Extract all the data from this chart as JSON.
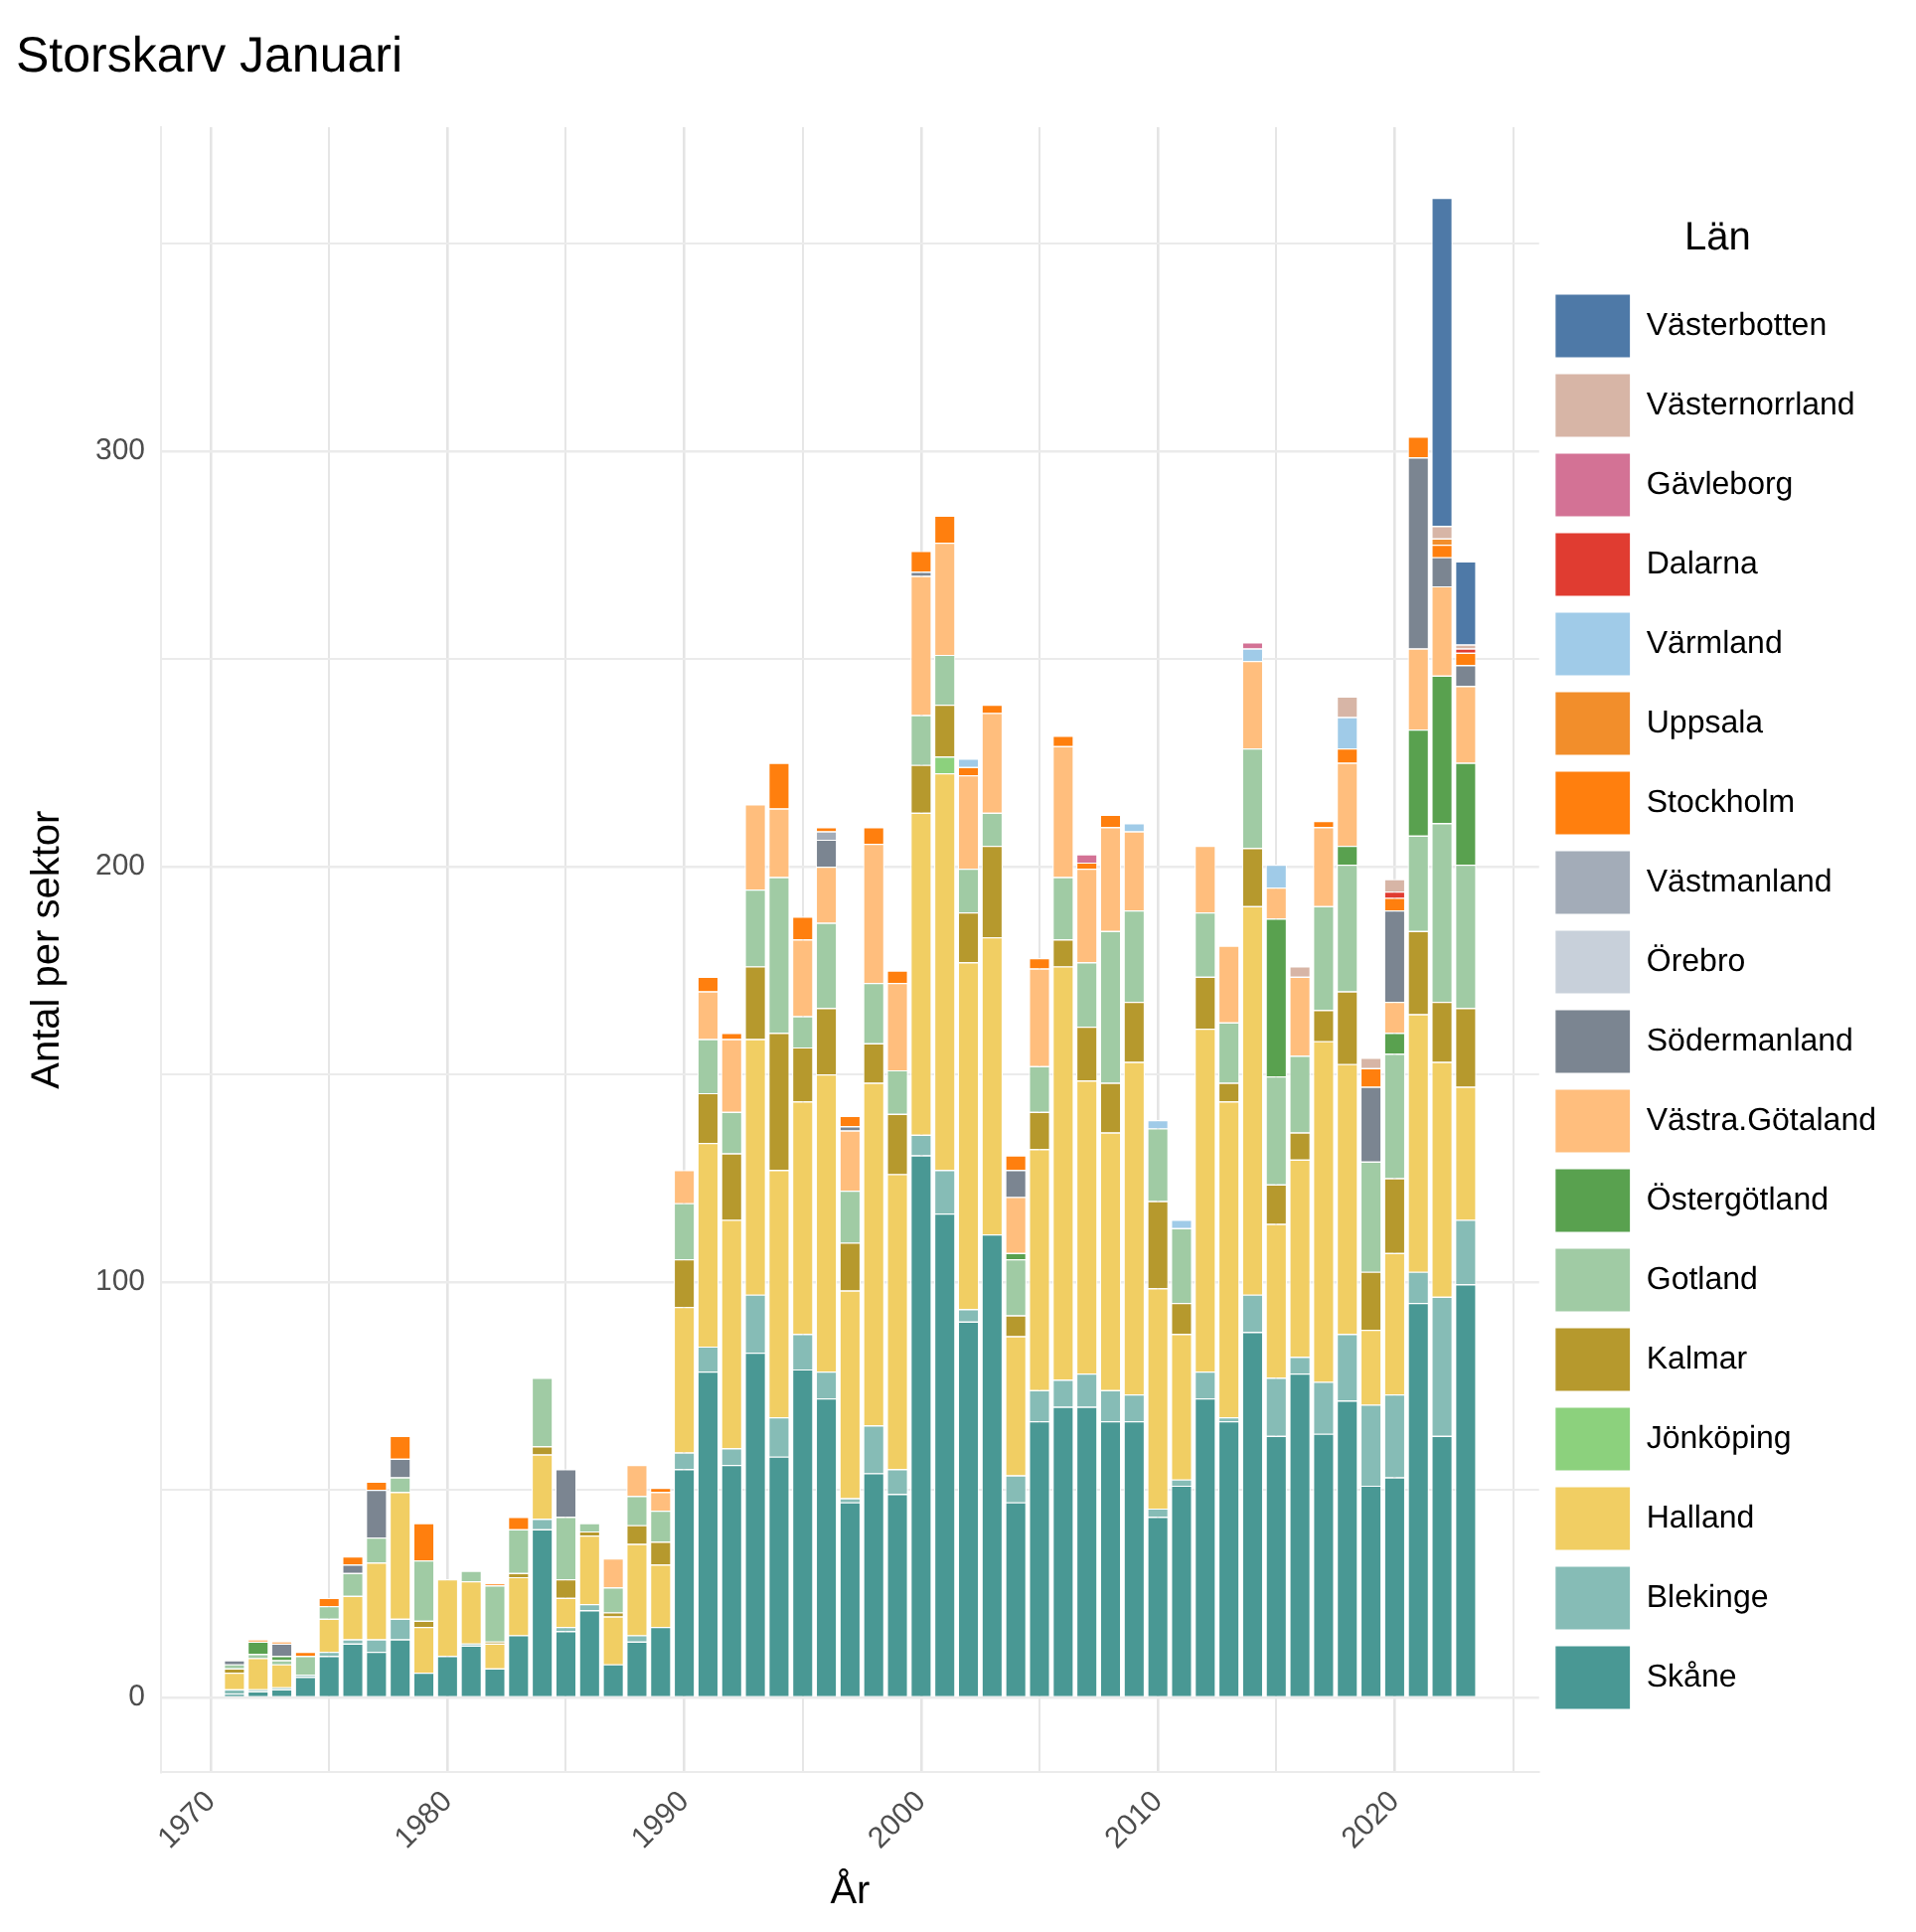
{
  "chart_data": {
    "type": "bar",
    "title": "Storskarv Januari",
    "xlabel": "År",
    "ylabel": "Antal per sektor",
    "legend_title": "Län",
    "stacked": true,
    "grid": true,
    "legend": "right",
    "xlim": [
      1967.9,
      2026.1
    ],
    "xticks": [
      1970,
      {
        "value": 1975,
        "label": null
      },
      1980,
      {
        "value": 1985,
        "label": null
      },
      1990,
      {
        "value": 1995,
        "label": null
      },
      2000,
      {
        "value": 2005,
        "label": null
      },
      2010,
      {
        "value": 2015,
        "label": null
      },
      2020,
      {
        "value": 2025,
        "label": null
      }
    ],
    "ylim": [
      -18,
      378
    ],
    "yticks": [
      0,
      {
        "value": 50,
        "label": null
      },
      100,
      {
        "value": 150,
        "label": null
      },
      200,
      {
        "value": 250,
        "label": null
      },
      300,
      {
        "value": 350,
        "label": null
      }
    ],
    "x": [
      1971,
      1972,
      1973,
      1974,
      1975,
      1976,
      1977,
      1978,
      1979,
      1980,
      1981,
      1982,
      1983,
      1984,
      1985,
      1986,
      1987,
      1988,
      1989,
      1990,
      1991,
      1992,
      1993,
      1994,
      1995,
      1996,
      1997,
      1998,
      1999,
      2000,
      2001,
      2002,
      2003,
      2004,
      2005,
      2006,
      2007,
      2008,
      2009,
      2010,
      2011,
      2012,
      2013,
      2014,
      2015,
      2016,
      2017,
      2018,
      2019,
      2020,
      2021,
      2022,
      2023
    ],
    "series": [
      {
        "name": "Skåne",
        "color": "#499894",
        "values": [
          1,
          1.5,
          2,
          5,
          10,
          13,
          11,
          14,
          6,
          10,
          12.5,
          7,
          15,
          40.5,
          16,
          21,
          8,
          13.5,
          17,
          55,
          78.5,
          56,
          83,
          58,
          79,
          72,
          47,
          54,
          49,
          130.5,
          116.5,
          90.5,
          111.5,
          47,
          66.5,
          70,
          70,
          66.5,
          66.5,
          43.5,
          51,
          72,
          66.5,
          88,
          63,
          78,
          63.5,
          71.5,
          51,
          53,
          95,
          63,
          99.5
        ]
      },
      {
        "name": "Blekinge",
        "color": "#86bcb6",
        "values": [
          1,
          0.5,
          0.5,
          0.5,
          1,
          1,
          3,
          5,
          null,
          null,
          0.5,
          null,
          null,
          2.5,
          1,
          1.5,
          null,
          1.5,
          null,
          4,
          6,
          4,
          14,
          9.5,
          8.5,
          6.5,
          1,
          11.5,
          6,
          5,
          10.5,
          3,
          null,
          6.5,
          7.5,
          6.5,
          8,
          7.5,
          6.5,
          2,
          1.5,
          6.5,
          1,
          9,
          14,
          4,
          12.5,
          16,
          19.5,
          20,
          7.5,
          33.5,
          15.5
        ]
      },
      {
        "name": "Halland",
        "color": "#f1ce63",
        "values": [
          4,
          7.5,
          5.5,
          null,
          8,
          10.5,
          18.5,
          30.5,
          11,
          18.5,
          15,
          6,
          14,
          15.5,
          7,
          16.5,
          11.5,
          22,
          15,
          35,
          49,
          55,
          61.5,
          59.5,
          56,
          71.5,
          50,
          82.5,
          71,
          77.5,
          95.5,
          83.5,
          71.5,
          33.5,
          58,
          99.5,
          70.5,
          62,
          80,
          53,
          35,
          82.5,
          76,
          93.5,
          37,
          47.5,
          82,
          65,
          18,
          34,
          62,
          56.5,
          32
        ]
      },
      {
        "name": "Jönköping",
        "color": "#8cd17d",
        "values": [
          null,
          null,
          null,
          null,
          null,
          null,
          null,
          null,
          null,
          null,
          null,
          null,
          null,
          null,
          null,
          null,
          null,
          null,
          null,
          null,
          null,
          null,
          null,
          null,
          null,
          null,
          null,
          null,
          null,
          null,
          4,
          null,
          null,
          null,
          null,
          null,
          null,
          null,
          null,
          null,
          null,
          null,
          null,
          null,
          null,
          null,
          null,
          null,
          null,
          null,
          null,
          null,
          null
        ]
      },
      {
        "name": "Kalmar",
        "color": "#b6992d",
        "values": [
          1,
          null,
          null,
          null,
          null,
          null,
          null,
          null,
          1.5,
          null,
          null,
          0.5,
          1,
          2,
          4.5,
          1,
          1,
          4.5,
          5.5,
          11.5,
          12,
          16,
          17.5,
          33,
          13,
          16,
          11.5,
          9.5,
          14.5,
          11.5,
          12.5,
          12,
          22,
          5,
          9,
          6.5,
          13,
          12,
          14.5,
          21,
          7.5,
          12.5,
          4.5,
          14,
          9.5,
          6.5,
          7.5,
          17.5,
          14,
          18,
          20,
          14.5,
          19
        ]
      },
      {
        "name": "Gotland",
        "color": "#a0cba4",
        "values": [
          1,
          1,
          1,
          4.5,
          3,
          5.5,
          6,
          3.5,
          14.5,
          null,
          2.5,
          13.5,
          10.5,
          16.5,
          15,
          2,
          6,
          7,
          7.5,
          13.5,
          13,
          10,
          18.5,
          37.5,
          7.5,
          20.5,
          12.5,
          14.5,
          10.5,
          12,
          12,
          10.5,
          8,
          13.5,
          11,
          15,
          15.5,
          36.5,
          22,
          17.5,
          18,
          15.5,
          14.5,
          24,
          26,
          18.5,
          25,
          30.5,
          26.5,
          30,
          23,
          43,
          34.5
        ]
      },
      {
        "name": "Östergötland",
        "color": "#59a14f",
        "values": [
          null,
          3,
          1,
          null,
          null,
          null,
          null,
          null,
          null,
          null,
          null,
          null,
          null,
          null,
          null,
          null,
          null,
          null,
          null,
          null,
          null,
          null,
          null,
          null,
          null,
          null,
          null,
          null,
          null,
          null,
          null,
          null,
          null,
          1.5,
          null,
          null,
          null,
          null,
          null,
          null,
          null,
          null,
          null,
          null,
          38,
          null,
          null,
          4.5,
          null,
          5,
          25.5,
          35.5,
          24.5
        ]
      },
      {
        "name": "Västra.Götaland",
        "color": "#ffbe7d",
        "values": [
          null,
          null,
          null,
          null,
          null,
          null,
          null,
          null,
          null,
          null,
          null,
          null,
          null,
          null,
          null,
          null,
          7,
          7.5,
          4.5,
          8,
          11.5,
          17.5,
          20.5,
          16.5,
          18.5,
          13.5,
          14.5,
          33.5,
          21,
          33.5,
          27,
          22.5,
          24,
          13.5,
          23.5,
          31.5,
          22.5,
          25,
          19,
          null,
          null,
          16,
          18.5,
          21,
          7.5,
          19,
          19,
          20,
          null,
          7.5,
          19.5,
          21.5,
          18.5
        ]
      },
      {
        "name": "Södermanland",
        "color": "#7b8591",
        "values": [
          1,
          null,
          3,
          null,
          null,
          2,
          11.5,
          4.5,
          null,
          null,
          null,
          null,
          null,
          null,
          11.5,
          null,
          null,
          null,
          null,
          null,
          null,
          null,
          null,
          null,
          null,
          6.5,
          1,
          null,
          null,
          1,
          null,
          null,
          null,
          6.5,
          null,
          null,
          null,
          null,
          null,
          null,
          null,
          null,
          null,
          null,
          null,
          null,
          null,
          null,
          18,
          22,
          46,
          7,
          5
        ]
      },
      {
        "name": "Örebro",
        "color": "#c8d0da",
        "values": [
          null,
          null,
          null,
          null,
          null,
          null,
          null,
          null,
          null,
          null,
          null,
          null,
          null,
          null,
          null,
          null,
          null,
          null,
          null,
          null,
          null,
          null,
          null,
          null,
          null,
          null,
          null,
          null,
          null,
          null,
          null,
          null,
          null,
          null,
          null,
          null,
          null,
          null,
          null,
          null,
          null,
          null,
          null,
          null,
          null,
          null,
          null,
          null,
          null,
          null,
          null,
          null,
          null
        ]
      },
      {
        "name": "Västmanland",
        "color": "#a3acb8",
        "values": [
          null,
          null,
          null,
          null,
          null,
          null,
          null,
          null,
          null,
          null,
          null,
          null,
          null,
          null,
          null,
          null,
          null,
          null,
          null,
          null,
          null,
          null,
          null,
          null,
          null,
          2,
          null,
          null,
          null,
          null,
          null,
          null,
          null,
          null,
          null,
          null,
          null,
          null,
          null,
          null,
          null,
          null,
          null,
          null,
          null,
          null,
          null,
          null,
          null,
          null,
          null,
          null,
          null
        ]
      },
      {
        "name": "Stockholm",
        "color": "#ff7f0e",
        "values": [
          null,
          0.5,
          0.5,
          1,
          2,
          2,
          2,
          5.5,
          9,
          null,
          null,
          0.5,
          3,
          null,
          null,
          null,
          null,
          null,
          1,
          null,
          3.5,
          1.5,
          null,
          11,
          5.5,
          1,
          2.5,
          4,
          3,
          5,
          6.5,
          2,
          2,
          3.5,
          2.5,
          2.5,
          1.5,
          3,
          null,
          null,
          null,
          null,
          null,
          null,
          null,
          null,
          1.5,
          3.5,
          4.5,
          3,
          5,
          3,
          3
        ]
      },
      {
        "name": "Uppsala",
        "color": "#f28e2b",
        "values": [
          null,
          null,
          null,
          null,
          null,
          null,
          null,
          null,
          null,
          null,
          null,
          null,
          null,
          null,
          null,
          null,
          null,
          null,
          null,
          null,
          null,
          null,
          null,
          null,
          null,
          null,
          null,
          null,
          null,
          null,
          null,
          null,
          null,
          null,
          null,
          null,
          null,
          null,
          null,
          null,
          null,
          null,
          null,
          null,
          null,
          null,
          null,
          null,
          null,
          null,
          null,
          1.5,
          null
        ]
      },
      {
        "name": "Värmland",
        "color": "#a0cbe8",
        "values": [
          null,
          null,
          null,
          null,
          null,
          null,
          null,
          null,
          null,
          null,
          null,
          null,
          null,
          null,
          null,
          null,
          null,
          null,
          null,
          null,
          null,
          null,
          null,
          null,
          null,
          null,
          null,
          null,
          null,
          null,
          null,
          2,
          null,
          null,
          null,
          null,
          null,
          null,
          2,
          2,
          2,
          null,
          null,
          3,
          5.5,
          null,
          null,
          7.5,
          null,
          null,
          null,
          null,
          null
        ]
      },
      {
        "name": "Dalarna",
        "color": "#e03c31",
        "values": [
          null,
          null,
          null,
          null,
          null,
          null,
          null,
          null,
          null,
          null,
          null,
          null,
          null,
          null,
          null,
          null,
          null,
          null,
          null,
          null,
          null,
          null,
          null,
          null,
          null,
          null,
          null,
          null,
          null,
          null,
          null,
          null,
          null,
          null,
          null,
          null,
          null,
          null,
          null,
          null,
          null,
          null,
          null,
          null,
          null,
          null,
          null,
          null,
          null,
          1.5,
          null,
          null,
          1
        ]
      },
      {
        "name": "Gävleborg",
        "color": "#d37295",
        "values": [
          null,
          null,
          null,
          null,
          null,
          null,
          null,
          null,
          null,
          null,
          null,
          null,
          null,
          null,
          null,
          null,
          null,
          null,
          null,
          null,
          null,
          null,
          null,
          null,
          null,
          null,
          null,
          null,
          null,
          null,
          null,
          null,
          null,
          null,
          null,
          null,
          2,
          null,
          null,
          null,
          null,
          null,
          null,
          1.5,
          null,
          null,
          null,
          null,
          null,
          null,
          null,
          null,
          null
        ]
      },
      {
        "name": "Västernorrland",
        "color": "#d7b5a6",
        "values": [
          null,
          null,
          null,
          null,
          null,
          null,
          null,
          null,
          null,
          null,
          null,
          null,
          null,
          null,
          null,
          null,
          null,
          null,
          null,
          null,
          null,
          null,
          null,
          null,
          null,
          null,
          null,
          null,
          null,
          null,
          null,
          null,
          null,
          null,
          null,
          null,
          null,
          null,
          null,
          null,
          null,
          null,
          null,
          null,
          null,
          2.5,
          null,
          5,
          2.5,
          3,
          null,
          3,
          1
        ]
      },
      {
        "name": "Västerbotten",
        "color": "#4e79a7",
        "values": [
          null,
          null,
          null,
          null,
          null,
          null,
          null,
          null,
          null,
          null,
          null,
          null,
          null,
          null,
          null,
          null,
          null,
          null,
          null,
          null,
          null,
          null,
          null,
          null,
          null,
          null,
          null,
          null,
          null,
          null,
          null,
          null,
          null,
          null,
          null,
          null,
          null,
          null,
          null,
          null,
          null,
          null,
          null,
          null,
          null,
          null,
          null,
          null,
          null,
          null,
          null,
          79,
          20
        ]
      }
    ]
  }
}
